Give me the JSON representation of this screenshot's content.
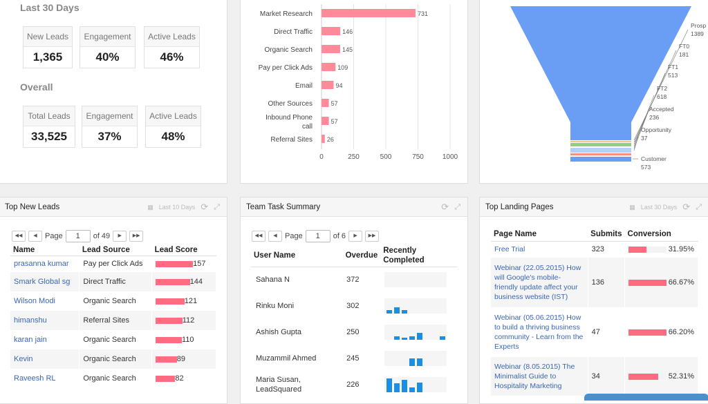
{
  "summary": {
    "last30": {
      "title": "Last 30 Days",
      "stats": [
        {
          "label": "New Leads",
          "value": "1,365"
        },
        {
          "label": "Engagement",
          "value": "40%"
        },
        {
          "label": "Active Leads",
          "value": "46%"
        }
      ]
    },
    "overall": {
      "title": "Overall",
      "stats": [
        {
          "label": "Total Leads",
          "value": "33,525"
        },
        {
          "label": "Engagement",
          "value": "37%"
        },
        {
          "label": "Active Leads",
          "value": "48%"
        }
      ]
    }
  },
  "chart_data": [
    {
      "type": "bar",
      "orientation": "horizontal",
      "categories": [
        "Market Research",
        "Direct Traffic",
        "Organic Search",
        "Pay per Click Ads",
        "Email",
        "Other Sources",
        "Inbound Phone call",
        "Referral Sites"
      ],
      "values": [
        731,
        146,
        145,
        109,
        94,
        57,
        57,
        26
      ],
      "xlim": [
        0,
        1000
      ],
      "xticks": [
        "0",
        "250",
        "500",
        "750",
        "1000"
      ],
      "grid": true,
      "color": "#ff8a9a"
    },
    {
      "type": "funnel",
      "categories": [
        "Prospect",
        "FT0",
        "FT1",
        "FT2",
        "Accepted",
        "Opportunity",
        "Customer"
      ],
      "labels": [
        "Prosp",
        "FT0",
        "FT1",
        "FT2",
        "Accepted",
        "Opportunity",
        "Customer"
      ],
      "values": [
        1389,
        181,
        513,
        618,
        236,
        37,
        573
      ],
      "colors": [
        "#6a9ef5",
        "#f7c879",
        "#95cf7a",
        "#b7cdfa",
        "#ff8d80",
        "#ff8d80",
        "#6a9ef5"
      ]
    }
  ],
  "leads": {
    "title": "Top New Leads",
    "range": "Last 10 Days",
    "page": "1",
    "page_label": "Page",
    "of": "of 49",
    "columns": [
      "Name",
      "Lead Source",
      "Lead Score"
    ],
    "rows": [
      [
        "prasanna kumar",
        "Pay per Click Ads",
        "157"
      ],
      [
        "Smark Global sg",
        "Direct Traffic",
        "144"
      ],
      [
        "Wilson Modi",
        "Organic Search",
        "121"
      ],
      [
        "himanshu",
        "Referral Sites",
        "112"
      ],
      [
        "karan jain",
        "Organic Search",
        "110"
      ],
      [
        "Kevin",
        "Organic Search",
        "89"
      ],
      [
        "Raveesh RL",
        "Organic Search",
        "82"
      ]
    ]
  },
  "tasks": {
    "title": "Team Task Summary",
    "page": "1",
    "page_label": "Page",
    "of": "of 6",
    "columns": [
      "User Name",
      "Overdue",
      "Recently Completed"
    ],
    "rows": [
      {
        "name": "Sahana N",
        "overdue": "372",
        "spark": [
          0,
          0,
          0,
          0,
          0,
          0,
          0,
          0
        ]
      },
      {
        "name": "Rinku Moni",
        "overdue": "302",
        "spark": [
          5,
          9,
          5,
          0,
          0,
          0,
          0,
          0
        ]
      },
      {
        "name": "Ashish Gupta",
        "overdue": "250",
        "spark": [
          0,
          5,
          3,
          5,
          10,
          0,
          0,
          5
        ]
      },
      {
        "name": "Muzammil Ahmed",
        "overdue": "245",
        "spark": [
          0,
          0,
          0,
          11,
          11,
          0,
          0,
          0
        ]
      },
      {
        "name": "Maria Susan, LeadSquared",
        "overdue": "226",
        "spark": [
          20,
          13,
          18,
          7,
          14,
          0,
          0,
          0
        ]
      }
    ]
  },
  "landing": {
    "title": "Top Landing Pages",
    "range": "Last 30 Days",
    "columns": [
      "Page Name",
      "Submits",
      "Conversion"
    ],
    "rows": [
      [
        "Free Trial",
        "323",
        "31.95%",
        31.95
      ],
      [
        "Webinar (22.05.2015) How will Google's mobile-friendly update affect your business website (IST)",
        "136",
        "66.67%",
        66.67
      ],
      [
        "Webinar (05.06.2015) How to build a thriving business community - Learn from the Experts",
        "47",
        "66.20%",
        66.2
      ],
      [
        "Webinar (8.05.2015) The Minimalist Guide to Hospitality Marketing",
        "34",
        "52.31%",
        52.31
      ]
    ]
  }
}
